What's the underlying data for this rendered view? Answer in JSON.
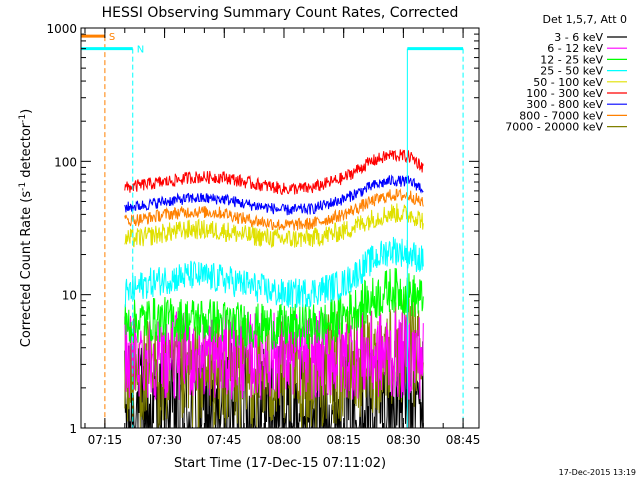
{
  "chart_data": {
    "type": "line",
    "title": "HESSI Observing Summary Count Rates, Corrected",
    "xlabel": "Start Time (17-Dec-15 07:11:02)",
    "ylabel": "Corrected Count Rate (s⁻¹ detector⁻¹)",
    "ylabel_parts": [
      "Corrected Count Rate (s",
      "-1",
      " detector",
      "-1",
      ")"
    ],
    "yscale": "log",
    "xlim": [
      "07:09",
      "08:49"
    ],
    "ylim": [
      1,
      1000
    ],
    "x_ticks": [
      "07:15",
      "07:30",
      "07:45",
      "08:00",
      "08:15",
      "08:30",
      "08:45"
    ],
    "y_ticks": [
      "1",
      "10",
      "100",
      "1000"
    ],
    "grid": false,
    "legend_title": "Det 1,5,7, Att 0",
    "legend_position": "right",
    "series": [
      {
        "name": "3 - 6 keV",
        "color": "#000000",
        "x": [
          "07:20",
          "07:30",
          "07:40",
          "07:50",
          "08:00",
          "08:10",
          "08:20",
          "08:30",
          "08:35"
        ],
        "y": [
          1.3,
          1.3,
          1.3,
          1.3,
          1.3,
          1.3,
          1.3,
          1.5,
          1.5
        ]
      },
      {
        "name": "6 - 12 keV",
        "color": "#ff00ff",
        "x": [
          "07:20",
          "07:30",
          "07:40",
          "07:50",
          "08:00",
          "08:10",
          "08:20",
          "08:30",
          "08:35"
        ],
        "y": [
          3.5,
          3.5,
          3.5,
          3.5,
          3.5,
          3.5,
          3.5,
          3.5,
          3.5
        ]
      },
      {
        "name": "12 - 25 keV",
        "color": "#00ff00",
        "x": [
          "07:20",
          "07:25",
          "07:30",
          "07:40",
          "07:45",
          "07:50",
          "08:00",
          "08:10",
          "08:15",
          "08:20",
          "08:27",
          "08:32",
          "08:35"
        ],
        "y": [
          6,
          6.5,
          6.5,
          6.5,
          6.2,
          5.9,
          5.7,
          5.9,
          7,
          8.5,
          11,
          10,
          9
        ]
      },
      {
        "name": "25 - 50 keV",
        "color": "#00ffff",
        "x": [
          "07:20",
          "07:25",
          "07:30",
          "07:37",
          "07:45",
          "07:50",
          "08:00",
          "08:07",
          "08:15",
          "08:22",
          "08:27",
          "08:32",
          "08:35"
        ],
        "y": [
          10,
          12,
          13,
          14,
          13,
          12,
          10,
          10.5,
          12,
          18,
          22,
          20,
          18
        ]
      },
      {
        "name": "50 - 100 keV",
        "color": "#e0e000",
        "x": [
          "07:20",
          "07:25",
          "07:30",
          "07:37",
          "07:45",
          "07:50",
          "08:00",
          "08:07",
          "08:15",
          "08:22",
          "08:27",
          "08:32",
          "08:35"
        ],
        "y": [
          26,
          27,
          29,
          31,
          30,
          28,
          26,
          26.5,
          30,
          37,
          41,
          40,
          36
        ]
      },
      {
        "name": "100 - 300 keV",
        "color": "#ff0000",
        "x": [
          "07:20",
          "07:25",
          "07:30",
          "07:37",
          "07:45",
          "07:50",
          "08:00",
          "08:07",
          "08:15",
          "08:22",
          "08:27",
          "08:32",
          "08:35"
        ],
        "y": [
          63,
          67,
          70,
          76,
          76,
          70,
          62,
          63,
          75,
          100,
          112,
          108,
          90
        ]
      },
      {
        "name": "300 - 800 keV",
        "color": "#0000ff",
        "x": [
          "07:20",
          "07:25",
          "07:30",
          "07:37",
          "07:45",
          "07:50",
          "08:00",
          "08:07",
          "08:15",
          "08:22",
          "08:27",
          "08:32",
          "08:35"
        ],
        "y": [
          45,
          47,
          50,
          53,
          52,
          48,
          43,
          44,
          52,
          65,
          72,
          70,
          62
        ]
      },
      {
        "name": "800 - 7000 keV",
        "color": "#ff8000",
        "x": [
          "07:20",
          "07:25",
          "07:30",
          "07:37",
          "07:45",
          "07:50",
          "08:00",
          "08:07",
          "08:15",
          "08:22",
          "08:27",
          "08:32",
          "08:35"
        ],
        "y": [
          36,
          37,
          40,
          42,
          41,
          37,
          33,
          34,
          40,
          50,
          56,
          55,
          48
        ]
      },
      {
        "name": "7000 - 20000 keV",
        "color": "#808000",
        "x": [
          "07:20",
          "07:30",
          "07:40",
          "07:50",
          "08:00",
          "08:10",
          "08:20",
          "08:30",
          "08:35"
        ],
        "y": [
          2.5,
          2.5,
          2.5,
          2.5,
          2.5,
          2.6,
          3.2,
          3.8,
          3.5
        ]
      }
    ],
    "annotations": [
      {
        "label": "S",
        "color": "#ff8000",
        "x": [
          "07:09",
          "07:15"
        ],
        "y": 870
      },
      {
        "label": "N",
        "color": "#00ffff",
        "x": [
          "07:09",
          "07:22"
        ],
        "y": 700
      },
      {
        "label": "N",
        "color": "#00ffff",
        "x": [
          "08:31",
          "08:45"
        ],
        "y": 700
      }
    ],
    "timestamp": "17-Dec-2015 13:19"
  }
}
